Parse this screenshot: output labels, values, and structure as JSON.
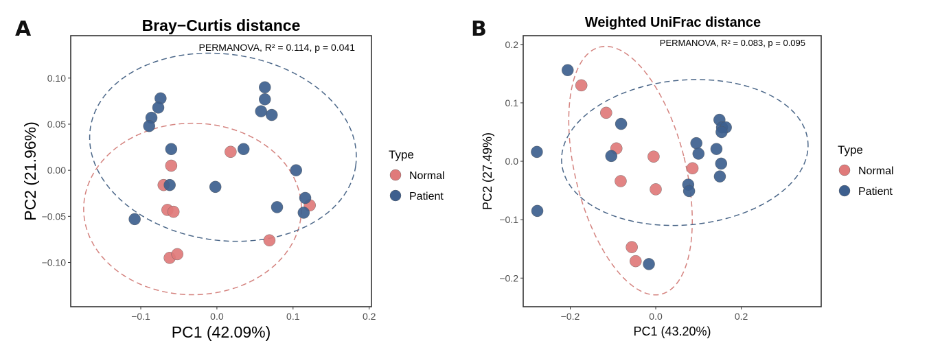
{
  "colors": {
    "Normal": "#e07a7a",
    "Patient": "#3d5f8e",
    "Normal_ellipse": "#d4827e",
    "Patient_ellipse": "#4a6688"
  },
  "chart_data": [
    {
      "panel_label": "A",
      "type": "scatter",
      "title": "Bray−Curtis distance",
      "xlabel": "PC1 (42.09%)",
      "ylabel": "PC2 (21.96%)",
      "annotation": "PERMANOVA, R² = 0.114, p = 0.041",
      "xlim": [
        -0.192,
        0.203
      ],
      "ylim": [
        -0.148,
        0.146
      ],
      "xticks": [
        {
          "v": -0.1,
          "label": "−0.1"
        },
        {
          "v": 0.0,
          "label": "0.0"
        },
        {
          "v": 0.1,
          "label": "0.1"
        },
        {
          "v": 0.2,
          "label": "0.2"
        }
      ],
      "yticks": [
        {
          "v": 0.1,
          "label": "0.10"
        },
        {
          "v": 0.05,
          "label": "0.05"
        },
        {
          "v": 0.0,
          "label": "0.00"
        },
        {
          "v": -0.05,
          "label": "−0.05"
        },
        {
          "v": -0.1,
          "label": "−0.10"
        }
      ],
      "legend": {
        "title": "Type",
        "entries": [
          "Normal",
          "Patient"
        ],
        "placement": "right"
      },
      "series": [
        {
          "name": "Normal",
          "points": [
            [
              0.018,
              0.02
            ],
            [
              -0.06,
              0.005
            ],
            [
              -0.07,
              -0.016
            ],
            [
              -0.065,
              -0.043
            ],
            [
              -0.057,
              -0.045
            ],
            [
              0.122,
              -0.038
            ],
            [
              0.069,
              -0.076
            ],
            [
              -0.062,
              -0.095
            ],
            [
              -0.052,
              -0.091
            ]
          ],
          "ellipse": {
            "cx": -0.032,
            "cy": -0.042,
            "rx": 0.143,
            "ry": 0.093,
            "angle_deg": 0
          }
        },
        {
          "name": "Patient",
          "points": [
            [
              -0.074,
              0.078
            ],
            [
              -0.077,
              0.068
            ],
            [
              -0.086,
              0.057
            ],
            [
              -0.089,
              0.048
            ],
            [
              -0.06,
              0.023
            ],
            [
              -0.062,
              -0.016
            ],
            [
              -0.108,
              -0.053
            ],
            [
              -0.002,
              -0.018
            ],
            [
              0.035,
              0.023
            ],
            [
              0.063,
              0.09
            ],
            [
              0.063,
              0.077
            ],
            [
              0.058,
              0.064
            ],
            [
              0.072,
              0.06
            ],
            [
              0.104,
              0.0
            ],
            [
              0.079,
              -0.04
            ],
            [
              0.116,
              -0.03
            ],
            [
              0.114,
              -0.046
            ]
          ],
          "ellipse": {
            "cx": 0.008,
            "cy": 0.025,
            "rx": 0.176,
            "ry": 0.101,
            "angle_deg": 8
          }
        }
      ]
    },
    {
      "panel_label": "B",
      "type": "scatter",
      "title": "Weighted UniFrac distance",
      "xlabel": "PC1 (43.20%)",
      "ylabel": "PC2 (27.49%)",
      "annotation": "PERMANOVA, R² = 0.083, p = 0.095",
      "xlim": [
        -0.31,
        0.387
      ],
      "ylim": [
        -0.249,
        0.215
      ],
      "xticks": [
        {
          "v": -0.2,
          "label": "−0.2"
        },
        {
          "v": 0.0,
          "label": "0.0"
        },
        {
          "v": 0.2,
          "label": "0.2"
        }
      ],
      "yticks": [
        {
          "v": 0.2,
          "label": "0.2"
        },
        {
          "v": 0.1,
          "label": "0.1"
        },
        {
          "v": 0.0,
          "label": "0.0"
        },
        {
          "v": -0.1,
          "label": "−0.1"
        },
        {
          "v": -0.2,
          "label": "−0.2"
        }
      ],
      "legend": {
        "title": "Type",
        "entries": [
          "Normal",
          "Patient"
        ],
        "placement": "right"
      },
      "series": [
        {
          "name": "Normal",
          "points": [
            [
              -0.174,
              0.13
            ],
            [
              -0.116,
              0.083
            ],
            [
              -0.092,
              0.022
            ],
            [
              -0.005,
              0.008
            ],
            [
              -0.082,
              -0.034
            ],
            [
              0.0,
              -0.048
            ],
            [
              0.086,
              -0.012
            ],
            [
              -0.056,
              -0.147
            ],
            [
              -0.047,
              -0.171
            ]
          ],
          "ellipse": {
            "cx": -0.059,
            "cy": -0.016,
            "rx": 0.129,
            "ry": 0.218,
            "angle_deg": -14
          }
        },
        {
          "name": "Patient",
          "points": [
            [
              -0.206,
              0.156
            ],
            [
              -0.081,
              0.064
            ],
            [
              -0.278,
              0.016
            ],
            [
              -0.277,
              -0.085
            ],
            [
              -0.104,
              0.009
            ],
            [
              0.095,
              0.031
            ],
            [
              0.1,
              0.013
            ],
            [
              0.149,
              0.071
            ],
            [
              0.155,
              0.058
            ],
            [
              0.164,
              0.058
            ],
            [
              0.154,
              0.05
            ],
            [
              0.142,
              0.021
            ],
            [
              0.153,
              -0.004
            ],
            [
              0.15,
              -0.026
            ],
            [
              0.076,
              -0.04
            ],
            [
              0.078,
              -0.051
            ],
            [
              -0.016,
              -0.176
            ]
          ],
          "ellipse": {
            "cx": 0.068,
            "cy": 0.015,
            "rx": 0.289,
            "ry": 0.124,
            "angle_deg": -5
          }
        }
      ]
    }
  ]
}
